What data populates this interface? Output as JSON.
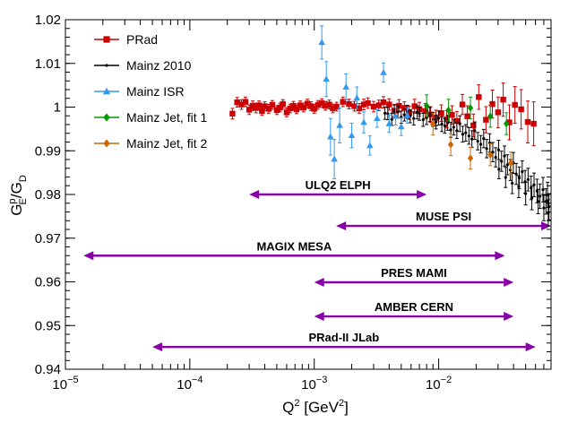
{
  "chart_data": {
    "type": "scatter",
    "xscale": "log",
    "xlim": [
      1e-05,
      0.08
    ],
    "ylim": [
      0.94,
      1.02
    ],
    "ylabel": {
      "main": "G",
      "sup": "p",
      "sub": "E",
      "tail": "/G",
      "tail_sub": "D"
    },
    "xlabel": {
      "main": "Q",
      "sup": "2",
      "unit_open": " [GeV",
      "unit_sup": "2",
      "unit_close": "]"
    },
    "x_ticks": [
      {
        "value": 1e-05,
        "base": "10",
        "exp": "−5"
      },
      {
        "value": 0.0001,
        "base": "10",
        "exp": "−4"
      },
      {
        "value": 0.001,
        "base": "10",
        "exp": "−3"
      },
      {
        "value": 0.01,
        "base": "10",
        "exp": "−2"
      }
    ],
    "y_ticks": [
      "0.94",
      "0.95",
      "0.96",
      "0.97",
      "0.98",
      "0.99",
      "1",
      "1.01",
      "1.02"
    ],
    "colors": {
      "prad": "#cc0000",
      "mainz2010": "#000000",
      "isr": "#3399ee",
      "jet1": "#009900",
      "jet2": "#cc6600",
      "range": "#8800aa"
    },
    "legend": [
      {
        "label": "PRad",
        "color": "#cc0000",
        "marker": "square"
      },
      {
        "label": "Mainz 2010",
        "color": "#000000",
        "marker": "dot"
      },
      {
        "label": "Mainz ISR",
        "color": "#3399ee",
        "marker": "triangle"
      },
      {
        "label": "Mainz Jet, fit 1",
        "color": "#009900",
        "marker": "diamond"
      },
      {
        "label": "Mainz Jet, fit 2",
        "color": "#cc6600",
        "marker": "diamond"
      }
    ],
    "ranges": [
      {
        "label": "ULQ2 ELPH",
        "xmin": 0.0003,
        "xmax": 0.008,
        "y": 0.98
      },
      {
        "label": "MUSE PSI",
        "xmin": 0.0015,
        "xmax": 0.08,
        "y": 0.9728
      },
      {
        "label": "MAGIX MESA",
        "xmin": 1.4e-05,
        "xmax": 0.034,
        "y": 0.966
      },
      {
        "label": "PRES MAMI",
        "xmin": 0.001,
        "xmax": 0.04,
        "y": 0.9599
      },
      {
        "label": "AMBER CERN",
        "xmin": 0.001,
        "xmax": 0.04,
        "y": 0.9521
      },
      {
        "label": "PRad-II JLab",
        "xmin": 5e-05,
        "xmax": 0.06,
        "y": 0.9451
      }
    ],
    "series": [
      {
        "name": "PRad",
        "marker": "square",
        "color": "#cc0000",
        "points": [
          [
            0.00022,
            0.9985,
            0.0012
          ],
          [
            0.00024,
            1.0011,
            0.0011
          ],
          [
            0.00026,
            1.0006,
            0.0011
          ],
          [
            0.00028,
            1.0012,
            0.0011
          ],
          [
            0.0003,
            0.9994,
            0.0011
          ],
          [
            0.00032,
            1.0003,
            0.0011
          ],
          [
            0.00034,
            0.9998,
            0.0011
          ],
          [
            0.00036,
            1.0004,
            0.001
          ],
          [
            0.00038,
            0.9991,
            0.001
          ],
          [
            0.0004,
            1.0002,
            0.001
          ],
          [
            0.00043,
            0.9996,
            0.001
          ],
          [
            0.00046,
            1.0005,
            0.001
          ],
          [
            0.0005,
            0.9993,
            0.001
          ],
          [
            0.00053,
            0.9999,
            0.001
          ],
          [
            0.00056,
            1.0007,
            0.001
          ],
          [
            0.0006,
            0.9988,
            0.001
          ],
          [
            0.00064,
            0.9997,
            0.001
          ],
          [
            0.00068,
            1.0003,
            0.001
          ],
          [
            0.00072,
            0.9995,
            0.001
          ],
          [
            0.00077,
            1.0004,
            0.001
          ],
          [
            0.00082,
            0.9999,
            0.001
          ],
          [
            0.00088,
            1.0008,
            0.001
          ],
          [
            0.00094,
            1.0002,
            0.001
          ],
          [
            0.001,
            0.9996,
            0.001
          ],
          [
            0.00107,
            1.0005,
            0.001
          ],
          [
            0.00115,
            1.0009,
            0.001
          ],
          [
            0.00123,
            1.0003,
            0.001
          ],
          [
            0.00132,
            1.0006,
            0.001
          ],
          [
            0.00141,
            0.9997,
            0.001
          ],
          [
            0.00151,
            1.0001,
            0.001
          ],
          [
            0.0017,
            1.0012,
            0.0011
          ],
          [
            0.0019,
            1.0007,
            0.0011
          ],
          [
            0.0021,
            1.0002,
            0.0011
          ],
          [
            0.0023,
            0.9997,
            0.0011
          ],
          [
            0.0025,
            1.0006,
            0.0012
          ],
          [
            0.0027,
            1.0009,
            0.0012
          ],
          [
            0.003,
            1.0001,
            0.0012
          ],
          [
            0.0033,
            1.0004,
            0.0012
          ],
          [
            0.0036,
            1.0011,
            0.0013
          ],
          [
            0.004,
            1.0006,
            0.0013
          ],
          [
            0.0044,
            0.9992,
            0.0014
          ],
          [
            0.0048,
            1.0003,
            0.0014
          ],
          [
            0.0053,
            0.9998,
            0.0014
          ],
          [
            0.0058,
            0.9987,
            0.0015
          ],
          [
            0.0064,
            1.0002,
            0.0016
          ],
          [
            0.007,
            0.9995,
            0.0016
          ],
          [
            0.0078,
            0.9991,
            0.0017
          ],
          [
            0.0086,
            0.9983,
            0.0018
          ],
          [
            0.0095,
            0.9975,
            0.0018
          ],
          [
            0.0105,
            0.9986,
            0.0019
          ],
          [
            0.0116,
            0.9972,
            0.002
          ],
          [
            0.0128,
            0.9982,
            0.0021
          ],
          [
            0.014,
            0.9968,
            0.0022
          ],
          [
            0.0155,
            1.0006,
            0.0023
          ],
          [
            0.017,
            0.9979,
            0.0024
          ],
          [
            0.019,
            0.9958,
            0.0026
          ],
          [
            0.021,
            1.0023,
            0.0028
          ],
          [
            0.024,
            0.9971,
            0.003
          ],
          [
            0.027,
            1.0007,
            0.0032
          ],
          [
            0.03,
            0.9988,
            0.0035
          ],
          [
            0.033,
            1.0017,
            0.0038
          ],
          [
            0.037,
            0.9965,
            0.004
          ],
          [
            0.041,
            1.0005,
            0.0042
          ],
          [
            0.046,
            0.9995,
            0.0045
          ],
          [
            0.052,
            0.9966,
            0.0048
          ],
          [
            0.058,
            0.9962,
            0.005
          ]
        ]
      },
      {
        "name": "Mainz 2010",
        "marker": "dot",
        "color": "#000000",
        "points": [
          [
            0.0037,
            0.9986,
            0.0014
          ],
          [
            0.0039,
            0.9985,
            0.0014
          ],
          [
            0.0042,
            0.9972,
            0.0014
          ],
          [
            0.0044,
            0.9991,
            0.0014
          ],
          [
            0.0047,
            0.9989,
            0.0014
          ],
          [
            0.005,
            0.9977,
            0.0014
          ],
          [
            0.0053,
            0.9982,
            0.0014
          ],
          [
            0.0056,
            0.9989,
            0.0015
          ],
          [
            0.0059,
            0.9979,
            0.0015
          ],
          [
            0.0063,
            0.9974,
            0.0015
          ],
          [
            0.0067,
            0.9988,
            0.0015
          ],
          [
            0.007,
            0.9985,
            0.0015
          ],
          [
            0.0075,
            0.9971,
            0.0015
          ],
          [
            0.008,
            0.9976,
            0.0016
          ],
          [
            0.0085,
            0.9983,
            0.0016
          ],
          [
            0.009,
            0.9972,
            0.0016
          ],
          [
            0.0095,
            0.9966,
            0.0016
          ],
          [
            0.01,
            0.9975,
            0.0016
          ],
          [
            0.0106,
            0.9961,
            0.0017
          ],
          [
            0.0112,
            0.9957,
            0.0017
          ],
          [
            0.0118,
            0.9964,
            0.0017
          ],
          [
            0.0125,
            0.9948,
            0.0017
          ],
          [
            0.0132,
            0.9954,
            0.0018
          ],
          [
            0.014,
            0.9946,
            0.0018
          ],
          [
            0.0148,
            0.9962,
            0.0018
          ],
          [
            0.0156,
            0.9938,
            0.0018
          ],
          [
            0.0165,
            0.9941,
            0.0019
          ],
          [
            0.0175,
            0.9934,
            0.0019
          ],
          [
            0.0185,
            0.9927,
            0.0019
          ],
          [
            0.0195,
            0.9946,
            0.002
          ],
          [
            0.0206,
            0.9922,
            0.002
          ],
          [
            0.0218,
            0.9915,
            0.002
          ],
          [
            0.023,
            0.9928,
            0.0021
          ],
          [
            0.0243,
            0.9905,
            0.0021
          ],
          [
            0.0257,
            0.9918,
            0.0021
          ],
          [
            0.0272,
            0.9897,
            0.0022
          ],
          [
            0.0287,
            0.9885,
            0.0022
          ],
          [
            0.0303,
            0.9902,
            0.0022
          ],
          [
            0.032,
            0.9876,
            0.0023
          ],
          [
            0.0338,
            0.9888,
            0.0023
          ],
          [
            0.0357,
            0.9868,
            0.0023
          ],
          [
            0.0377,
            0.9856,
            0.0024
          ],
          [
            0.0398,
            0.9872,
            0.0024
          ],
          [
            0.042,
            0.9847,
            0.0024
          ],
          [
            0.0444,
            0.9838,
            0.0025
          ],
          [
            0.0469,
            0.9852,
            0.0025
          ],
          [
            0.0495,
            0.9829,
            0.0026
          ],
          [
            0.0523,
            0.9834,
            0.0026
          ],
          [
            0.0553,
            0.9815,
            0.0027
          ],
          [
            0.0584,
            0.9822,
            0.0027
          ],
          [
            0.0617,
            0.9808,
            0.0027
          ],
          [
            0.0652,
            0.9796,
            0.0028
          ],
          [
            0.0689,
            0.9811,
            0.0028
          ],
          [
            0.0728,
            0.9784,
            0.0029
          ],
          [
            0.075,
            0.9799,
            0.0029
          ],
          [
            0.077,
            0.9772,
            0.003
          ],
          [
            0.0305,
            0.9858,
            0.0022
          ],
          [
            0.0345,
            0.9839,
            0.0023
          ],
          [
            0.039,
            0.9826,
            0.0024
          ],
          [
            0.044,
            0.9818,
            0.0025
          ],
          [
            0.05,
            0.9802,
            0.0026
          ],
          [
            0.056,
            0.9792,
            0.0027
          ],
          [
            0.063,
            0.9784,
            0.0028
          ],
          [
            0.07,
            0.9769,
            0.0029
          ],
          [
            0.076,
            0.9758,
            0.003
          ]
        ]
      },
      {
        "name": "Mainz ISR",
        "marker": "triangle",
        "color": "#3399ee",
        "points": [
          [
            0.00115,
            1.0148,
            0.0038
          ],
          [
            0.00125,
            1.0064,
            0.004
          ],
          [
            0.00135,
            0.9932,
            0.0042
          ],
          [
            0.00145,
            0.9881,
            0.0045
          ],
          [
            0.0016,
            0.9958,
            0.004
          ],
          [
            0.0018,
            1.0046,
            0.003
          ],
          [
            0.002,
            0.9935,
            0.0028
          ],
          [
            0.0022,
            1.0021,
            0.0025
          ],
          [
            0.0025,
            0.9965,
            0.0024
          ],
          [
            0.0028,
            0.9912,
            0.0022
          ],
          [
            0.0032,
            0.9974,
            0.002
          ],
          [
            0.0036,
            1.0079,
            0.0022
          ],
          [
            0.004,
            0.9962,
            0.002
          ],
          [
            0.0045,
            0.9979,
            0.002
          ],
          [
            0.005,
            0.9955,
            0.002
          ],
          [
            0.0056,
            0.9981,
            0.0018
          ]
        ]
      },
      {
        "name": "Mainz Jet, fit 1",
        "marker": "diamond",
        "color": "#009900",
        "points": [
          [
            0.008,
            1.0003,
            0.0025
          ],
          [
            0.012,
            0.9993,
            0.0025
          ],
          [
            0.018,
            0.9998,
            0.0025
          ],
          [
            0.026,
            0.9979,
            0.0025
          ],
          [
            0.035,
            0.9962,
            0.0025
          ]
        ]
      },
      {
        "name": "Mainz Jet, fit 2",
        "marker": "diamond",
        "color": "#cc6600",
        "points": [
          [
            0.009,
            0.9961,
            0.0025
          ],
          [
            0.0125,
            0.9914,
            0.0025
          ],
          [
            0.018,
            0.9883,
            0.0025
          ],
          [
            0.026,
            0.9891,
            0.0025
          ],
          [
            0.038,
            0.9872,
            0.0025
          ]
        ]
      }
    ]
  }
}
